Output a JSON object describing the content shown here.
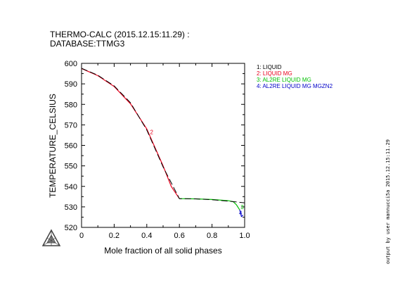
{
  "header": {
    "line1": "THERMO-CALC (2015.12.15:11.29) :",
    "line2": "DATABASE:TTMG3"
  },
  "side_text": "output by user mannucci5a 2015.12.15:11.29",
  "chart_data": {
    "type": "line",
    "xlabel": "Mole fraction of all solid phases",
    "ylabel": "TEMPERATURE_CELSIUS",
    "xlim": [
      0,
      1.0
    ],
    "ylim": [
      520,
      600
    ],
    "xticks": [
      "0",
      "0.2",
      "0.4",
      "0.6",
      "0.8",
      "1.0"
    ],
    "yticks": [
      "520",
      "530",
      "540",
      "550",
      "560",
      "570",
      "580",
      "590",
      "600"
    ],
    "legend_placement": "top-right, outside plot",
    "legend": [
      {
        "label": "1: LIQUID",
        "color": "#000000"
      },
      {
        "label": "2: LIQUID MG",
        "color": "#e8001c"
      },
      {
        "label": "3: AL2RE LIQUID MG",
        "color": "#00c000"
      },
      {
        "label": "4: AL2RE LIQUID MG MGZN2",
        "color": "#0000c8"
      }
    ],
    "series": [
      {
        "name": "2: LIQUID MG",
        "color": "#e8001c",
        "x": [
          0,
          0.1,
          0.2,
          0.3,
          0.4,
          0.5,
          0.55,
          0.6
        ],
        "y": [
          597.5,
          594,
          588.7,
          580.3,
          568,
          550,
          540,
          534
        ]
      },
      {
        "name": "3: AL2RE LIQUID MG",
        "color": "#00c000",
        "x": [
          0.6,
          0.7,
          0.8,
          0.9,
          0.93,
          0.95,
          0.97
        ],
        "y": [
          534,
          533.9,
          533.6,
          533,
          532.5,
          531,
          528.5
        ]
      },
      {
        "name": "4: AL2RE LIQUID MG MGZN2",
        "color": "#0000c8",
        "x": [
          0.97,
          0.975,
          0.98,
          0.985,
          0.99
        ],
        "y": [
          528.5,
          527,
          525.3,
          525.6,
          526
        ]
      },
      {
        "name": "1: LIQUID",
        "color": "#000000",
        "dashed": true,
        "x": [
          0,
          0.1,
          0.2,
          0.3,
          0.4,
          0.5,
          0.6,
          0.7,
          0.8,
          0.9,
          1.0
        ],
        "y": [
          597.6,
          594.2,
          589,
          580.8,
          567.5,
          549.5,
          534,
          533.9,
          533.5,
          532.8,
          532
        ]
      }
    ],
    "annotations": [
      {
        "text": "2",
        "x": 0.43,
        "y": 565.5,
        "color": "#e8001c"
      },
      {
        "text": "3",
        "x": 0.985,
        "y": 529,
        "color": "#00c000"
      },
      {
        "text": "4",
        "x": 0.975,
        "y": 526,
        "color": "#0000c8"
      }
    ]
  }
}
